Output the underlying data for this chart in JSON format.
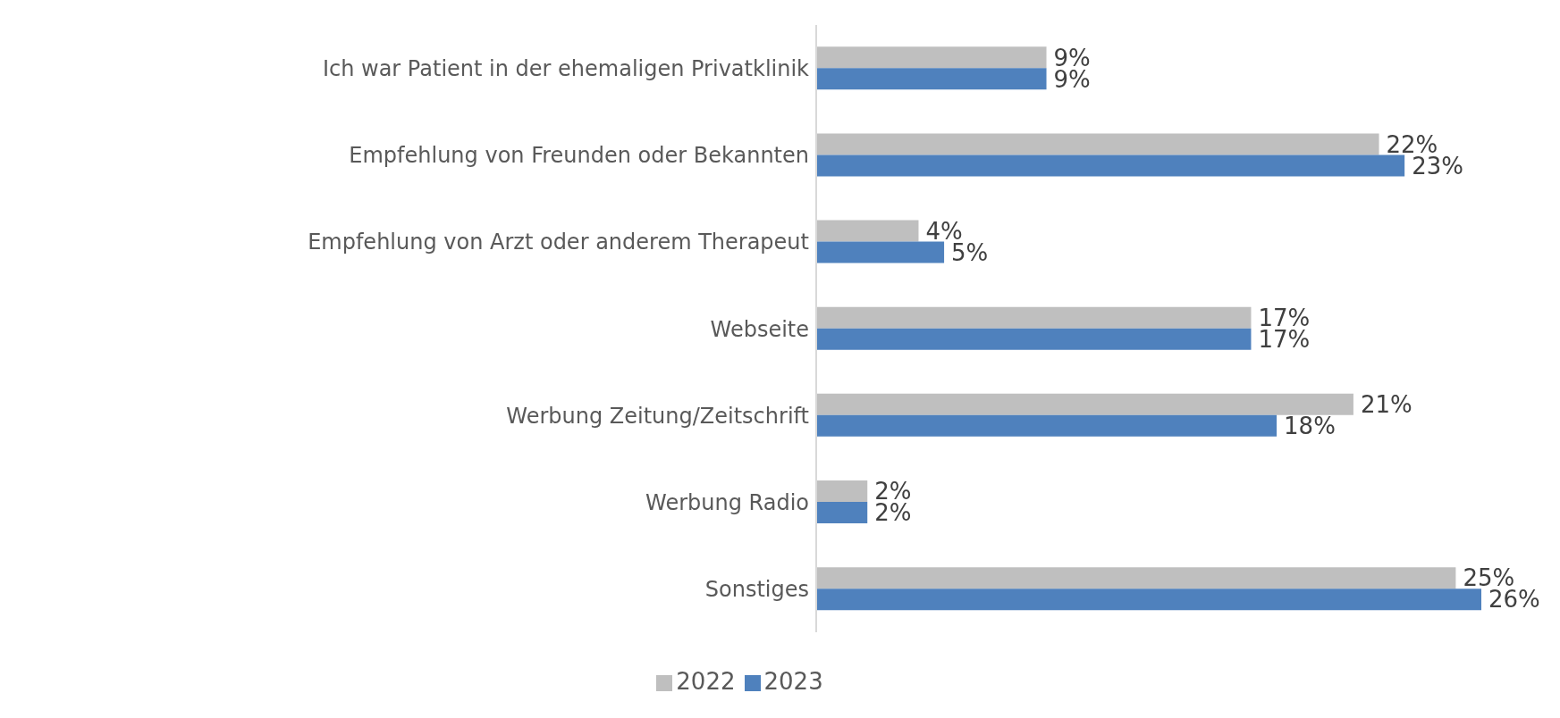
{
  "chart_data": {
    "type": "bar",
    "orientation": "horizontal",
    "categories": [
      "Ich war Patient in der ehemaligen Privatklinik",
      "Empfehlung von Freunden oder Bekannten",
      "Empfehlung von Arzt oder anderem Therapeut",
      "Webseite",
      "Werbung Zeitung/Zeitschrift",
      "Werbung Radio",
      "Sonstiges"
    ],
    "series": [
      {
        "name": "2022",
        "color": "#bfbfbf",
        "values": [
          9,
          22,
          4,
          17,
          21,
          2,
          25
        ],
        "value_labels": [
          "9%",
          "22%",
          "4%",
          "17%",
          "21%",
          "2%",
          "25%"
        ]
      },
      {
        "name": "2023",
        "color": "#4f81bd",
        "values": [
          9,
          23,
          5,
          17,
          18,
          2,
          26
        ],
        "value_labels": [
          "9%",
          "23%",
          "5%",
          "17%",
          "18%",
          "2%",
          "26%"
        ]
      }
    ],
    "legend": "bottom",
    "grid": false
  }
}
